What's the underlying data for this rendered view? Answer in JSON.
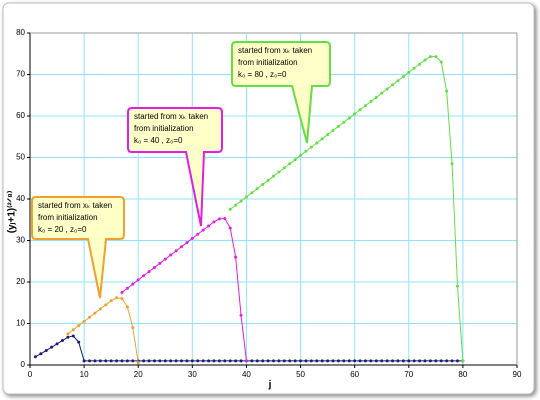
{
  "chart_data": {
    "type": "line",
    "xlabel": "j",
    "ylabel": "(yⱼ+1)⁽²ᐟ⁸⁾",
    "xlim": [
      0,
      90
    ],
    "xticks": [
      0,
      10,
      20,
      30,
      40,
      50,
      60,
      70,
      80,
      90
    ],
    "ylim": [
      0,
      80
    ],
    "yticks": [
      0,
      10,
      20,
      30,
      40,
      50,
      60,
      70,
      80
    ],
    "grid": true,
    "series": [
      {
        "color": "#1c1c70",
        "x": [
          1,
          2,
          3,
          4,
          5,
          6,
          7,
          8,
          9,
          10,
          11,
          12,
          13,
          14,
          15,
          16,
          17,
          18,
          19,
          20,
          21,
          22,
          23,
          24,
          25,
          26,
          27,
          28,
          29,
          30,
          31,
          32,
          33,
          34,
          35,
          36,
          37,
          38,
          39,
          40,
          41,
          42,
          43,
          44,
          45,
          46,
          47,
          48,
          49,
          50,
          51,
          52,
          53,
          54,
          55,
          56,
          57,
          58,
          59,
          60,
          61,
          62,
          63,
          64,
          65,
          66,
          67,
          68,
          69,
          70,
          71,
          72,
          73,
          74,
          75,
          76,
          77,
          78,
          79,
          80
        ],
        "values": [
          2,
          2.7,
          3.5,
          4.3,
          5.1,
          5.9,
          6.7,
          7,
          5.5,
          1,
          1,
          1,
          1,
          1,
          1,
          1,
          1,
          1,
          1,
          1,
          1,
          1,
          1,
          1,
          1,
          1,
          1,
          1,
          1,
          1,
          1,
          1,
          1,
          1,
          1,
          1,
          1,
          1,
          1,
          1,
          1,
          1,
          1,
          1,
          1,
          1,
          1,
          1,
          1,
          1,
          1,
          1,
          1,
          1,
          1,
          1,
          1,
          1,
          1,
          1,
          1,
          1,
          1,
          1,
          1,
          1,
          1,
          1,
          1,
          1,
          1,
          1,
          1,
          1,
          1,
          1,
          1,
          1,
          1,
          1
        ]
      },
      {
        "color": "#f0a030",
        "x": [
          7,
          8,
          9,
          10,
          11,
          12,
          13,
          14,
          15,
          16,
          17,
          18,
          19,
          20
        ],
        "values": [
          7.5,
          8.5,
          9.5,
          10.5,
          11.5,
          12.5,
          13.5,
          14.5,
          15.5,
          16.2,
          16,
          14,
          9,
          0.5
        ]
      },
      {
        "color": "#e020e0",
        "x": [
          17,
          18,
          19,
          20,
          21,
          22,
          23,
          24,
          25,
          26,
          27,
          28,
          29,
          30,
          31,
          32,
          33,
          34,
          35,
          36,
          37,
          38,
          39,
          40
        ],
        "values": [
          17.5,
          18.5,
          19.5,
          20.5,
          21.5,
          22.5,
          23.5,
          24.5,
          25.5,
          26.5,
          27.5,
          28.5,
          29.5,
          30.5,
          31.5,
          32.5,
          33.5,
          34.5,
          35.2,
          35.3,
          33,
          26,
          12,
          1
        ]
      },
      {
        "color": "#66dd44",
        "x": [
          37,
          38,
          39,
          40,
          41,
          42,
          43,
          44,
          45,
          46,
          47,
          48,
          49,
          50,
          51,
          52,
          53,
          54,
          55,
          56,
          57,
          58,
          59,
          60,
          61,
          62,
          63,
          64,
          65,
          66,
          67,
          68,
          69,
          70,
          71,
          72,
          73,
          74,
          75,
          76,
          77,
          78,
          79,
          80
        ],
        "values": [
          37.5,
          38.5,
          39.5,
          40.5,
          41.5,
          42.5,
          43.5,
          44.5,
          45.5,
          46.5,
          47.5,
          48.5,
          49.5,
          50.5,
          51.5,
          52.5,
          53.5,
          54.5,
          55.5,
          56.5,
          57.5,
          58.5,
          59.5,
          60.5,
          61.5,
          62.5,
          63.5,
          64.5,
          65.5,
          66.5,
          67.5,
          68.5,
          69.5,
          70.5,
          71.5,
          72.5,
          73.5,
          74.3,
          74.3,
          73,
          66,
          48.5,
          19,
          1
        ]
      }
    ],
    "annotations": [
      {
        "color": "#f0a030",
        "lines": [
          "started from xₖ taken",
          "from initialization",
          "k₀ = 20 , z₀=0"
        ]
      },
      {
        "color": "#e020e0",
        "lines": [
          "started from xₖ taken",
          "from initialization",
          "k₀ = 40 , z₀=0"
        ]
      },
      {
        "color": "#66dd44",
        "lines": [
          "started from xₖ taken",
          "from initialization",
          "k₀ = 80 , z₀=0"
        ]
      }
    ]
  }
}
